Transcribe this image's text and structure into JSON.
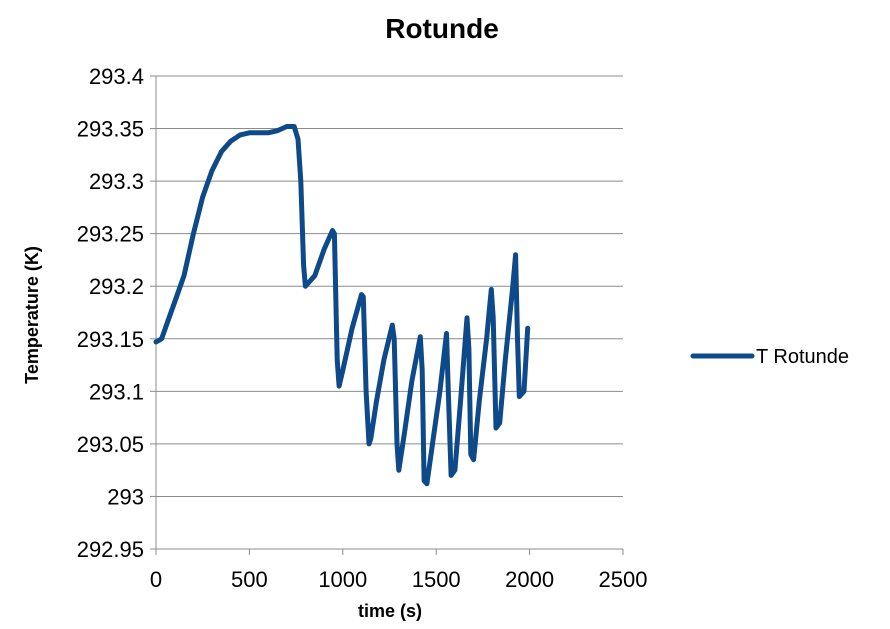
{
  "chart_data": {
    "type": "line",
    "title": "Rotunde",
    "xlabel": "time (s)",
    "ylabel": "Temperature (K)",
    "xlim": [
      0,
      2500
    ],
    "ylim": [
      292.95,
      293.4
    ],
    "x_ticks": [
      "0",
      "500",
      "1000",
      "1500",
      "2000",
      "2500"
    ],
    "y_ticks": [
      "293.4",
      "293.35",
      "293.3",
      "293.25",
      "293.2",
      "293.15",
      "293.1",
      "293.05",
      "293",
      "292.95"
    ],
    "x_tick_values": [
      0,
      500,
      1000,
      1500,
      2000,
      2500
    ],
    "y_tick_values": [
      293.4,
      293.35,
      293.3,
      293.25,
      293.2,
      293.15,
      293.1,
      293.05,
      293.0,
      292.95
    ],
    "grid": "horizontal",
    "legend_position": "right",
    "series": [
      {
        "name": "T Rotunde",
        "color": "#0e4a8a",
        "x": [
          0,
          30,
          60,
          100,
          150,
          200,
          250,
          300,
          350,
          400,
          450,
          500,
          550,
          600,
          650,
          700,
          740,
          760,
          775,
          790,
          800,
          850,
          900,
          945,
          955,
          970,
          980,
          1000,
          1050,
          1100,
          1110,
          1125,
          1140,
          1150,
          1180,
          1220,
          1265,
          1275,
          1290,
          1300,
          1330,
          1370,
          1415,
          1425,
          1435,
          1450,
          1480,
          1520,
          1555,
          1565,
          1580,
          1600,
          1630,
          1665,
          1675,
          1685,
          1700,
          1730,
          1770,
          1795,
          1805,
          1820,
          1840,
          1870,
          1910,
          1925,
          1935,
          1945,
          1970,
          1990
        ],
        "y": [
          293.147,
          293.15,
          293.165,
          293.185,
          293.21,
          293.25,
          293.285,
          293.31,
          293.328,
          293.338,
          293.344,
          293.346,
          293.346,
          293.346,
          293.348,
          293.352,
          293.352,
          293.34,
          293.3,
          293.22,
          293.2,
          293.21,
          293.235,
          293.253,
          293.25,
          293.13,
          293.105,
          293.12,
          293.16,
          293.192,
          293.19,
          293.1,
          293.05,
          293.055,
          293.09,
          293.13,
          293.163,
          293.15,
          293.05,
          293.025,
          293.06,
          293.11,
          293.152,
          293.12,
          293.015,
          293.012,
          293.05,
          293.1,
          293.155,
          293.1,
          293.02,
          293.025,
          293.09,
          293.17,
          293.14,
          293.04,
          293.035,
          293.09,
          293.15,
          293.197,
          293.17,
          293.065,
          293.07,
          293.13,
          293.2,
          293.23,
          293.15,
          293.095,
          293.1,
          293.16
        ]
      }
    ]
  }
}
